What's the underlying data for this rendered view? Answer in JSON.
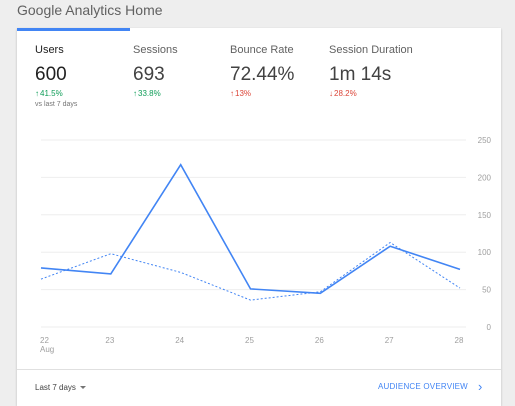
{
  "page": {
    "title": "Google Analytics Home"
  },
  "metrics": [
    {
      "label": "Users",
      "value": "600",
      "delta": "41.5%",
      "direction": "up",
      "compare": "vs last 7 days"
    },
    {
      "label": "Sessions",
      "value": "693",
      "delta": "33.8%",
      "direction": "up"
    },
    {
      "label": "Bounce Rate",
      "value": "72.44%",
      "delta": "13%",
      "direction": "up",
      "status": "negative"
    },
    {
      "label": "Session Duration",
      "value": "1m 14s",
      "delta": "28.2%",
      "direction": "down",
      "status": "negative"
    }
  ],
  "icons": {
    "arrow_up": "↑",
    "arrow_down": "↓",
    "chevron": "›"
  },
  "colors": {
    "accent": "#4285f4",
    "positive": "#0f9d58",
    "negative": "#db4437"
  },
  "chart_data": {
    "type": "line",
    "x": [
      "22",
      "23",
      "24",
      "25",
      "26",
      "27",
      "28"
    ],
    "x_sublabel": "Aug",
    "y_ticks": [
      0,
      50,
      100,
      150,
      200,
      250
    ],
    "ylim": [
      0,
      250
    ],
    "grid": "horizontal",
    "series": [
      {
        "values": [
          79,
          71,
          217,
          51,
          45,
          108,
          77
        ],
        "style": "solid"
      },
      {
        "values": [
          64,
          98,
          73,
          36,
          47,
          113,
          52
        ],
        "style": "dashed"
      }
    ]
  },
  "footer": {
    "date_range": "Last 7 days",
    "link": "AUDIENCE OVERVIEW"
  }
}
